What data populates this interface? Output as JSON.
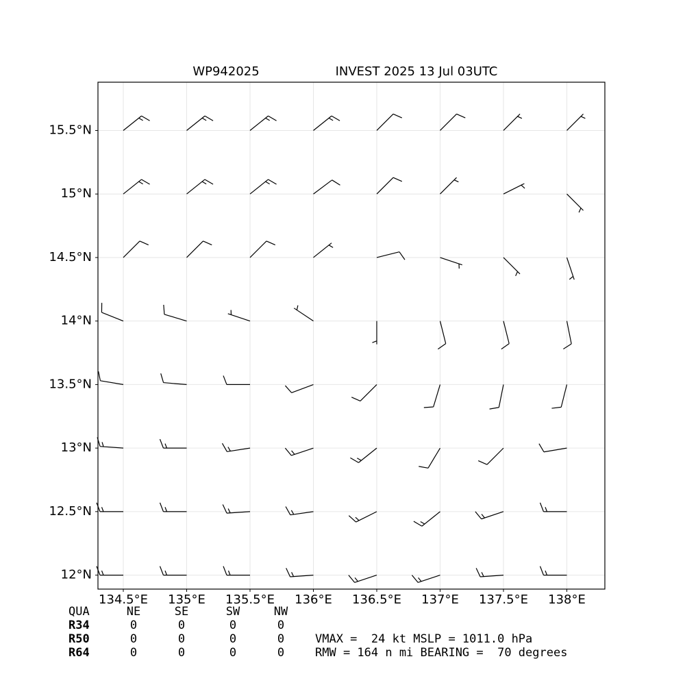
{
  "chart_data": {
    "type": "barbs",
    "title_left": "WP942025",
    "title_right": "INVEST 2025 13 Jul 03UTC",
    "xlim": [
      134.3,
      138.3
    ],
    "ylim": [
      11.89,
      15.88
    ],
    "xticks": [
      {
        "value": 134.5,
        "label": "134.5°E"
      },
      {
        "value": 135,
        "label": "135°E"
      },
      {
        "value": 135.5,
        "label": "135.5°E"
      },
      {
        "value": 136,
        "label": "136°E"
      },
      {
        "value": 136.5,
        "label": "136.5°E"
      },
      {
        "value": 137,
        "label": "137°E"
      },
      {
        "value": 137.5,
        "label": "137.5°E"
      },
      {
        "value": 138,
        "label": "138°E"
      }
    ],
    "yticks": [
      {
        "value": 12,
        "label": "12°N"
      },
      {
        "value": 12.5,
        "label": "12.5°N"
      },
      {
        "value": 13,
        "label": "13°N"
      },
      {
        "value": 13.5,
        "label": "13.5°N"
      },
      {
        "value": 14,
        "label": "14°N"
      },
      {
        "value": 14.5,
        "label": "14.5°N"
      },
      {
        "value": 15,
        "label": "15°N"
      },
      {
        "value": 15.5,
        "label": "15.5°N"
      }
    ],
    "grid": true,
    "color": "#000000",
    "barbs": {
      "lon": [
        134.5,
        135.0,
        135.5,
        136.0,
        136.5,
        137.0,
        137.5,
        138.0
      ],
      "lat": [
        12.0,
        12.5,
        13.0,
        13.5,
        14.0,
        14.5,
        15.0,
        15.5
      ],
      "u": [
        [
          15,
          15,
          15,
          14,
          12,
          12,
          14,
          15
        ],
        [
          15,
          15,
          15,
          14,
          12,
          10,
          12,
          15
        ],
        [
          14,
          14,
          13,
          12,
          10,
          6,
          8,
          12
        ],
        [
          12,
          12,
          10,
          8,
          6,
          3,
          2,
          2
        ],
        [
          10,
          10,
          6,
          3,
          0,
          -2,
          -2,
          -2
        ],
        [
          -8,
          -8,
          -6,
          -5,
          -8,
          -6,
          -4,
          -2
        ],
        [
          -10,
          -10,
          -10,
          -8,
          -6,
          -4,
          -4,
          -2
        ],
        [
          -10,
          -10,
          -10,
          -10,
          -8,
          -6,
          -4,
          -4
        ]
      ],
      "v": [
        [
          0,
          0,
          0,
          1,
          4,
          4,
          1,
          0
        ],
        [
          0,
          0,
          1,
          2,
          6,
          8,
          4,
          0
        ],
        [
          -1,
          0,
          2,
          4,
          8,
          10,
          8,
          2
        ],
        [
          -2,
          -1,
          0,
          3,
          6,
          10,
          10,
          8
        ],
        [
          -4,
          -3,
          -2,
          -2,
          4,
          8,
          8,
          10
        ],
        [
          -8,
          -8,
          -6,
          -4,
          -2,
          2,
          4,
          6
        ],
        [
          -8,
          -8,
          -8,
          -6,
          -6,
          -4,
          -2,
          2
        ],
        [
          -8,
          -8,
          -8,
          -8,
          -8,
          -6,
          -4,
          -4
        ]
      ]
    },
    "quadrant_table": {
      "header": [
        "QUA",
        "NE",
        "SE",
        "SW",
        "NW"
      ],
      "rows": [
        [
          "R34",
          0,
          0,
          0,
          0
        ],
        [
          "R50",
          0,
          0,
          0,
          0
        ],
        [
          "R64",
          0,
          0,
          0,
          0
        ]
      ]
    },
    "info": [
      "VMAX =  24 kt MSLP = 1011.0 hPa",
      "RMW = 164 n mi BEARING =  70 degrees"
    ]
  }
}
